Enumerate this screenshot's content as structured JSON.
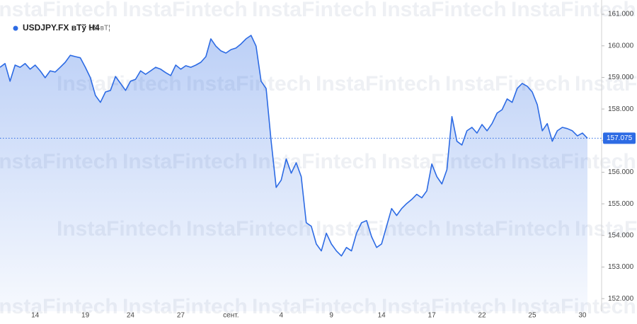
{
  "chart_data": {
    "type": "area",
    "watermark": "InstaFintech",
    "legend_sub": "US вТ¦",
    "categories": [
      null,
      null,
      null,
      null,
      null,
      null,
      null,
      "14",
      null,
      null,
      null,
      null,
      null,
      null,
      null,
      null,
      null,
      "19",
      null,
      null,
      null,
      null,
      null,
      null,
      null,
      null,
      "24",
      null,
      null,
      null,
      null,
      null,
      null,
      null,
      null,
      null,
      "27",
      null,
      null,
      null,
      null,
      null,
      null,
      null,
      null,
      null,
      "сент.",
      null,
      null,
      null,
      null,
      null,
      null,
      null,
      null,
      null,
      "4",
      null,
      null,
      null,
      null,
      null,
      null,
      null,
      null,
      null,
      "9",
      null,
      null,
      null,
      null,
      null,
      null,
      null,
      null,
      null,
      "14",
      null,
      null,
      null,
      null,
      null,
      null,
      null,
      null,
      null,
      "17",
      null,
      null,
      null,
      null,
      null,
      null,
      null,
      null,
      null,
      "22",
      null,
      null,
      null,
      null,
      null,
      null,
      null,
      null,
      null,
      "25",
      null,
      null,
      null,
      null,
      null,
      null,
      null,
      null,
      null,
      "30",
      null
    ],
    "series": [
      {
        "name": "USDJPY.FX вТў H4",
        "color": "#2d6be4",
        "values": [
          159.32,
          159.44,
          158.88,
          159.39,
          159.32,
          159.44,
          159.26,
          159.39,
          159.21,
          158.99,
          159.21,
          159.17,
          159.32,
          159.48,
          159.7,
          159.66,
          159.62,
          159.32,
          158.99,
          158.43,
          158.21,
          158.54,
          158.59,
          159.03,
          158.81,
          158.59,
          158.88,
          158.94,
          159.21,
          159.1,
          159.21,
          159.32,
          159.26,
          159.15,
          159.06,
          159.39,
          159.26,
          159.37,
          159.32,
          159.39,
          159.48,
          159.66,
          160.22,
          159.99,
          159.84,
          159.77,
          159.88,
          159.93,
          160.06,
          160.22,
          160.33,
          159.99,
          158.88,
          158.65,
          156.98,
          155.52,
          155.75,
          156.42,
          155.97,
          156.3,
          155.86,
          154.4,
          154.29,
          153.73,
          153.51,
          154.07,
          153.73,
          153.51,
          153.35,
          153.62,
          153.51,
          154.07,
          154.4,
          154.47,
          153.96,
          153.62,
          153.73,
          154.29,
          154.85,
          154.63,
          154.85,
          155.01,
          155.14,
          155.3,
          155.19,
          155.41,
          156.26,
          155.86,
          155.63,
          156.08,
          157.76,
          156.98,
          156.86,
          157.31,
          157.42,
          157.24,
          157.51,
          157.31,
          157.54,
          157.87,
          157.98,
          158.32,
          158.21,
          158.65,
          158.81,
          158.72,
          158.54,
          158.14,
          157.31,
          157.54,
          156.98,
          157.31,
          157.42,
          157.38,
          157.31,
          157.15,
          157.24,
          157.075
        ]
      }
    ],
    "ylim": [
      151.6,
      161.45
    ],
    "yticks": [
      {
        "value": 152,
        "label": "152.000"
      },
      {
        "value": 153,
        "label": "153.000"
      },
      {
        "value": 154,
        "label": "154.000"
      },
      {
        "value": 155,
        "label": "155.000"
      },
      {
        "value": 156,
        "label": "156.000"
      },
      {
        "value": 157,
        "label": "157.000"
      },
      {
        "value": 158,
        "label": "158.000"
      },
      {
        "value": 159,
        "label": "159.000"
      },
      {
        "value": 160,
        "label": "160.000"
      },
      {
        "value": 161,
        "label": "161.000"
      }
    ],
    "grid": false
  }
}
